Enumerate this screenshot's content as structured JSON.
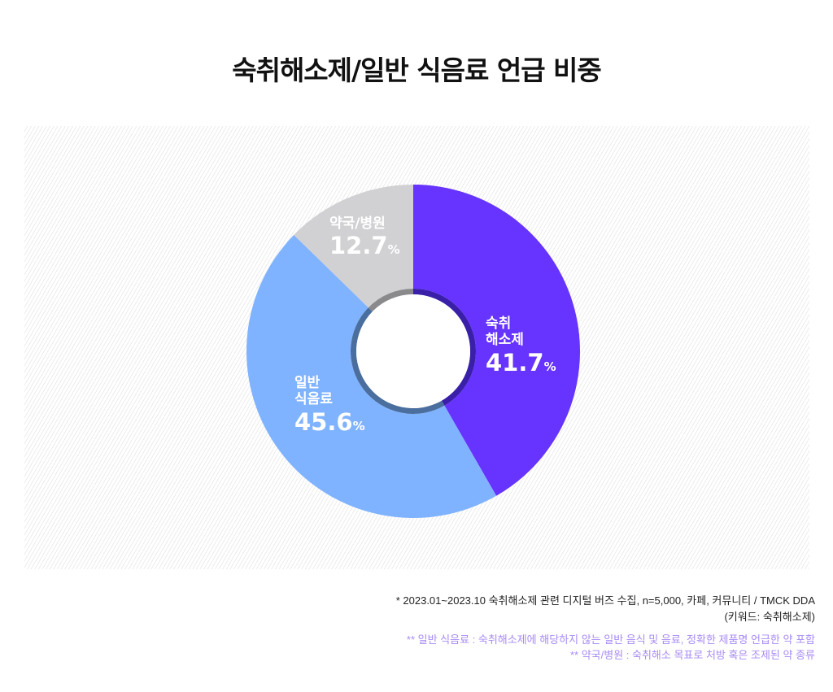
{
  "chart_data": {
    "type": "pie",
    "title": "숙취해소제/일반 식음료 언급 비중",
    "categories": [
      "숙취 해소제",
      "일반 식음료",
      "약국/병원"
    ],
    "values": [
      41.7,
      45.6,
      12.7
    ],
    "unit": "%",
    "colors": [
      "#6633ff",
      "#80b3ff",
      "#d1d1d4"
    ],
    "ring_colors": [
      "#3a1fa8",
      "#4a6e9e",
      "#8a8a8d"
    ],
    "labels": [
      {
        "line1": "숙취",
        "line2": "해소제",
        "value": "41.7",
        "pct": "%"
      },
      {
        "line1": "일반",
        "line2": "식음료",
        "value": "45.6",
        "pct": "%"
      },
      {
        "line1": "약국/병원",
        "line2": "",
        "value": "12.7",
        "pct": "%"
      }
    ]
  },
  "footnotes": {
    "n1": "* 2023.01~2023.10 숙취해소제 관련 디지털 버즈 수집, n=5,000, 카페, 커뮤니티 / TMCK DDA",
    "n1b": "(키워드: 숙취해소제)",
    "n2": "** 일반 식음료 : 숙취해소제에 해당하지 않는 일반 음식 및 음료, 정확한 제품명 언급한 약 포함",
    "n3": "** 약국/병원 : 숙취해소 목표로 처방 혹은 조제된 약 종류"
  }
}
